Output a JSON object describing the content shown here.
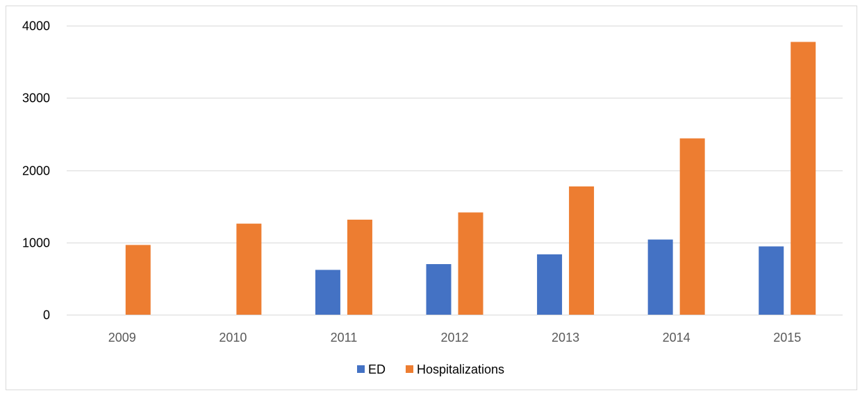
{
  "chart_data": {
    "type": "bar",
    "title": "",
    "xlabel": "",
    "ylabel": "",
    "categories": [
      "2009",
      "2010",
      "2011",
      "2012",
      "2013",
      "2014",
      "2015"
    ],
    "series": [
      {
        "name": "ED",
        "color": "#4472c4",
        "values": [
          0,
          0,
          620,
          700,
          835,
          1040,
          945
        ]
      },
      {
        "name": "Hospitalizations",
        "color": "#ed7d31",
        "values": [
          965,
          1260,
          1315,
          1415,
          1775,
          2440,
          3775
        ]
      }
    ],
    "ylim": [
      0,
      4000
    ],
    "yticks": [
      0,
      1000,
      2000,
      3000,
      4000
    ],
    "grid": true,
    "legend": "bottom"
  }
}
